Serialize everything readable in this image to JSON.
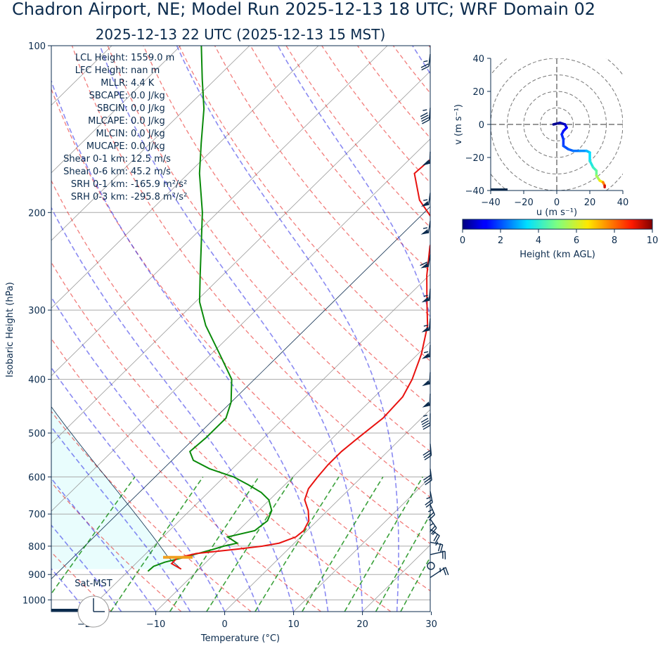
{
  "title": "Chadron Airport, NE; Model Run 2025-12-13 18 UTC; WRF Domain 02",
  "subtitle": "2025-12-13 22 UTC  (2025-12-13 15 MST)",
  "colors": {
    "temperature": "#e8120f",
    "dewpoint": "#0a8a0a",
    "dry_adiabat": "#e8120f",
    "moist_adiabat": "#2a2ae8",
    "mixing_ratio": "#0a8a0a",
    "isotherm": "#9a9a9a",
    "cape_shade": "#e9fdfd",
    "text": "#0b2b4d",
    "lcl_marker": "#f0a020"
  },
  "parameters": [
    {
      "label": "LCL Height",
      "value": "1559.0 m"
    },
    {
      "label": "LFC Height",
      "value": "nan m"
    },
    {
      "label": "MLLR",
      "value": "4.4 K"
    },
    {
      "label": "SBCAPE",
      "value": "0.0 J/kg"
    },
    {
      "label": "SBCIN",
      "value": "0.0 J/kg"
    },
    {
      "label": "MLCAPE",
      "value": "0.0 J/kg"
    },
    {
      "label": "MLCIN",
      "value": "0.0 J/kg"
    },
    {
      "label": "MUCAPE",
      "value": "0.0 J/kg"
    },
    {
      "label": "Shear 0-1 km",
      "value": "12.5 m/s"
    },
    {
      "label": "Shear 0-6 km",
      "value": "45.2 m/s"
    },
    {
      "label": "SRH 0-1 km",
      "value": "-165.9 m²/s²"
    },
    {
      "label": "SRH 0-3 km",
      "value": "-295.8 m²/s²"
    }
  ],
  "clock_label": "Sat-MST",
  "chart_data": [
    {
      "type": "line",
      "xlabel": "Temperature (°C)",
      "ylabel": "Isobaric Height (hPa)",
      "xlim": [
        -25,
        30
      ],
      "ylim": [
        1050,
        100
      ],
      "y_log_scale": true,
      "x_ticks": [
        "−20",
        "−10",
        "0",
        "10",
        "20",
        "30"
      ],
      "x_tick_values": [
        -20,
        -10,
        0,
        10,
        20,
        30
      ],
      "y_ticks": [
        "100",
        "200",
        "300",
        "400",
        "500",
        "600",
        "700",
        "800",
        "900",
        "1000"
      ],
      "y_tick_values": [
        100,
        200,
        300,
        400,
        500,
        600,
        700,
        800,
        900,
        1000
      ],
      "grid": true,
      "temperature_profile": {
        "p": [
          880,
          860,
          840,
          825,
          810,
          800,
          790,
          770,
          750,
          720,
          690,
          660,
          630,
          600,
          570,
          540,
          510,
          470,
          430,
          400,
          360,
          320,
          290,
          260,
          230,
          212,
          190,
          170,
          152,
          135,
          120,
          110,
          100
        ],
        "t": [
          -12.6,
          -14.8,
          -14.8,
          -12.7,
          -7.5,
          -4.2,
          -2.2,
          -0.7,
          -0.5,
          -1.2,
          -2.8,
          -4.9,
          -6.0,
          -6.4,
          -6.7,
          -6.7,
          -6.3,
          -5.6,
          -5.9,
          -7.1,
          -9.5,
          -12.8,
          -16.4,
          -20.3,
          -24.2,
          -26.0,
          -32.5,
          -37.2,
          -36.7,
          -36.0,
          -35.3,
          -35.1,
          -35.0
        ]
      },
      "dewpoint_profile": {
        "p": [
          888,
          870,
          855,
          840,
          825,
          812,
          800,
          790,
          770,
          750,
          720,
          690,
          660,
          640,
          620,
          600,
          580,
          560,
          540,
          510,
          470,
          440,
          400,
          360,
          320,
          290,
          260,
          230,
          200,
          170,
          150,
          130,
          115,
          100
        ],
        "td": [
          -17.1,
          -17.0,
          -16.0,
          -14.1,
          -12.5,
          -11.0,
          -9.8,
          -8.3,
          -10.6,
          -7.6,
          -7.2,
          -8.1,
          -10.1,
          -12.3,
          -15.3,
          -18.6,
          -23.3,
          -26.9,
          -28.7,
          -28.4,
          -28.4,
          -30.0,
          -33.3,
          -38.8,
          -45.0,
          -49.4,
          -53.2,
          -57.4,
          -62.2,
          -68.4,
          -72.6,
          -77.3,
          -81.9,
          -87.0
        ]
      },
      "lcl_pressure": 838,
      "wind_barbs": [
        {
          "p": 100,
          "u": -5,
          "v": 25
        },
        {
          "p": 125,
          "u": -10,
          "v": 45
        },
        {
          "p": 150,
          "u": -12,
          "v": 48
        },
        {
          "p": 178,
          "u": -10,
          "v": 52
        },
        {
          "p": 200,
          "u": -10,
          "v": 55
        },
        {
          "p": 230,
          "u": -10,
          "v": 58
        },
        {
          "p": 265,
          "u": -12,
          "v": 55
        },
        {
          "p": 300,
          "u": -12,
          "v": 55
        },
        {
          "p": 335,
          "u": -12,
          "v": 52
        },
        {
          "p": 375,
          "u": -12,
          "v": 50
        },
        {
          "p": 410,
          "u": -12,
          "v": 48
        },
        {
          "p": 445,
          "u": -12,
          "v": 45
        },
        {
          "p": 505,
          "u": -10,
          "v": 30
        },
        {
          "p": 560,
          "u": -10,
          "v": 28
        },
        {
          "p": 615,
          "u": -10,
          "v": 25
        },
        {
          "p": 650,
          "u": -12,
          "v": 22
        },
        {
          "p": 690,
          "u": -15,
          "v": 22
        },
        {
          "p": 720,
          "u": -18,
          "v": 18
        },
        {
          "p": 760,
          "u": -20,
          "v": 12
        },
        {
          "p": 800,
          "u": -20,
          "v": 5
        },
        {
          "p": 880,
          "u": -25,
          "v": -2
        }
      ]
    },
    {
      "type": "line",
      "name": "hodograph",
      "xlabel": "u (m s⁻¹)",
      "ylabel": "v (m s⁻¹)",
      "xlim": [
        -40,
        40
      ],
      "ylim": [
        -40,
        40
      ],
      "x_ticks": [
        "−40",
        "−20",
        "0",
        "20",
        "40"
      ],
      "x_tick_values": [
        -40,
        -20,
        0,
        20,
        40
      ],
      "y_ticks": [
        "40",
        "20",
        "0",
        "−20",
        "−40"
      ],
      "y_tick_values": [
        40,
        20,
        0,
        -20,
        -40
      ],
      "rings": [
        10,
        20,
        30,
        40
      ],
      "points": [
        {
          "u": -2,
          "v": 0,
          "h": 0.0
        },
        {
          "u": 2,
          "v": 1,
          "h": 0.3
        },
        {
          "u": 5,
          "v": 0,
          "h": 0.6
        },
        {
          "u": 6,
          "v": -2,
          "h": 0.9
        },
        {
          "u": 4,
          "v": -4,
          "h": 1.2
        },
        {
          "u": 3,
          "v": -6,
          "h": 1.4
        },
        {
          "u": 4,
          "v": -9,
          "h": 1.6
        },
        {
          "u": 4,
          "v": -13,
          "h": 1.8
        },
        {
          "u": 7,
          "v": -15,
          "h": 2.0
        },
        {
          "u": 10,
          "v": -16,
          "h": 2.2
        },
        {
          "u": 14,
          "v": -16,
          "h": 2.4
        },
        {
          "u": 18,
          "v": -16,
          "h": 2.8
        },
        {
          "u": 20,
          "v": -17,
          "h": 3.2
        },
        {
          "u": 20,
          "v": -22,
          "h": 3.6
        },
        {
          "u": 22,
          "v": -26,
          "h": 4.0
        },
        {
          "u": 24,
          "v": -28,
          "h": 4.4
        },
        {
          "u": 24,
          "v": -31,
          "h": 5.0
        },
        {
          "u": 26,
          "v": -34,
          "h": 6.0
        },
        {
          "u": 28,
          "v": -35,
          "h": 7.0
        },
        {
          "u": 29,
          "v": -37,
          "h": 8.5
        },
        {
          "u": 29,
          "v": -38,
          "h": 10.0
        }
      ]
    },
    {
      "type": "heatmap",
      "name": "colorbar",
      "xlabel": "Height (km AGL)",
      "xlim": [
        0,
        10
      ],
      "x_ticks": [
        "0",
        "2",
        "4",
        "6",
        "8",
        "10"
      ],
      "x_tick_values": [
        0,
        2,
        4,
        6,
        8,
        10
      ],
      "colormap": "jet"
    }
  ]
}
